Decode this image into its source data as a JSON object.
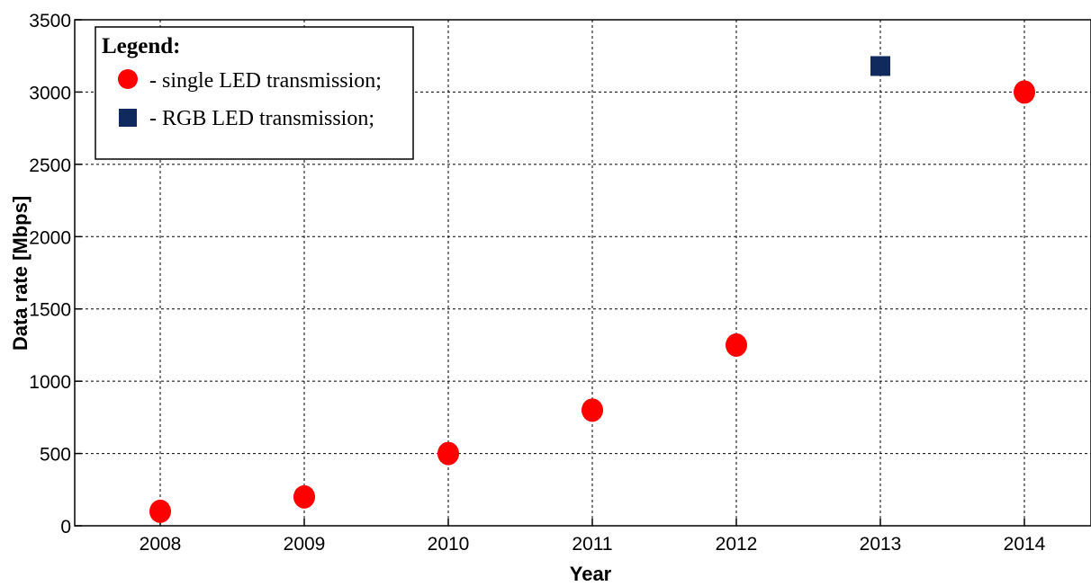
{
  "chart_data": {
    "type": "scatter",
    "xlabel": "Year",
    "ylabel": "Data rate [Mbps]",
    "x_ticks": [
      "2008",
      "2009",
      "2010",
      "2011",
      "2012",
      "2013",
      "2014"
    ],
    "y_ticks": [
      "0",
      "500",
      "1000",
      "1500",
      "2000",
      "2500",
      "3000",
      "3500"
    ],
    "xlim": [
      2007.4,
      2015.2
    ],
    "ylim": [
      0,
      3500
    ],
    "grid": true,
    "legend": {
      "title": "Legend:",
      "position": "top-left",
      "entries": [
        {
          "label": "- single LED transmission;",
          "marker": "circle",
          "color": "#ff0000"
        },
        {
          "label": "- RGB LED transmission;",
          "marker": "square",
          "color": "#102a5e"
        }
      ]
    },
    "series": [
      {
        "marker": "circle",
        "color": "#ff0000",
        "points": [
          {
            "x": 2008,
            "y": 100
          },
          {
            "x": 2009,
            "y": 200
          },
          {
            "x": 2010,
            "y": 500
          },
          {
            "x": 2011,
            "y": 800
          },
          {
            "x": 2012,
            "y": 1250
          },
          {
            "x": 2014,
            "y": 3000
          }
        ]
      },
      {
        "marker": "square",
        "color": "#102a5e",
        "points": [
          {
            "x": 2013,
            "y": 3180
          }
        ]
      }
    ]
  }
}
